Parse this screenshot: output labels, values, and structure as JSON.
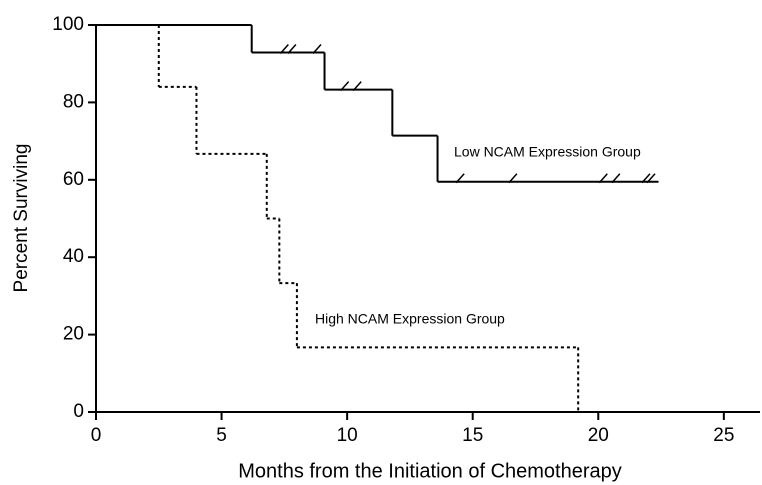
{
  "chart_data": {
    "type": "step",
    "xlabel": "Months from the Initiation of Chemotherapy",
    "ylabel": "Percent Surviving",
    "xlim": [
      0,
      26.4
    ],
    "xticks": [
      0,
      5,
      10,
      15,
      20,
      25
    ],
    "ylim": [
      0,
      100
    ],
    "yticks": [
      0,
      20,
      40,
      60,
      80,
      100
    ],
    "series": [
      {
        "name": "Low NCAM Expression Group",
        "color": "#000000",
        "style": "solid",
        "x": [
          0,
          6.2,
          9.1,
          11.8,
          13.6
        ],
        "values": [
          100,
          92.9,
          83.3,
          71.4,
          59.5
        ],
        "x_end": 22.4,
        "censored_x": [
          7.5,
          7.8,
          8.8,
          9.9,
          10.4,
          14.5,
          16.6,
          20.2,
          20.7,
          21.9,
          22.1
        ],
        "censored_y": [
          92.9,
          92.9,
          92.9,
          83.3,
          83.3,
          59.5,
          59.5,
          59.5,
          59.5,
          59.5,
          59.5
        ]
      },
      {
        "name": "High NCAM Expression Group",
        "color": "#000000",
        "style": "dotted",
        "x": [
          0,
          2.5,
          4.0,
          6.8,
          7.3,
          8.0,
          19.2
        ],
        "values": [
          100,
          84,
          66.7,
          50,
          33.3,
          16.7,
          0
        ],
        "x_end": 19.2
      }
    ]
  }
}
